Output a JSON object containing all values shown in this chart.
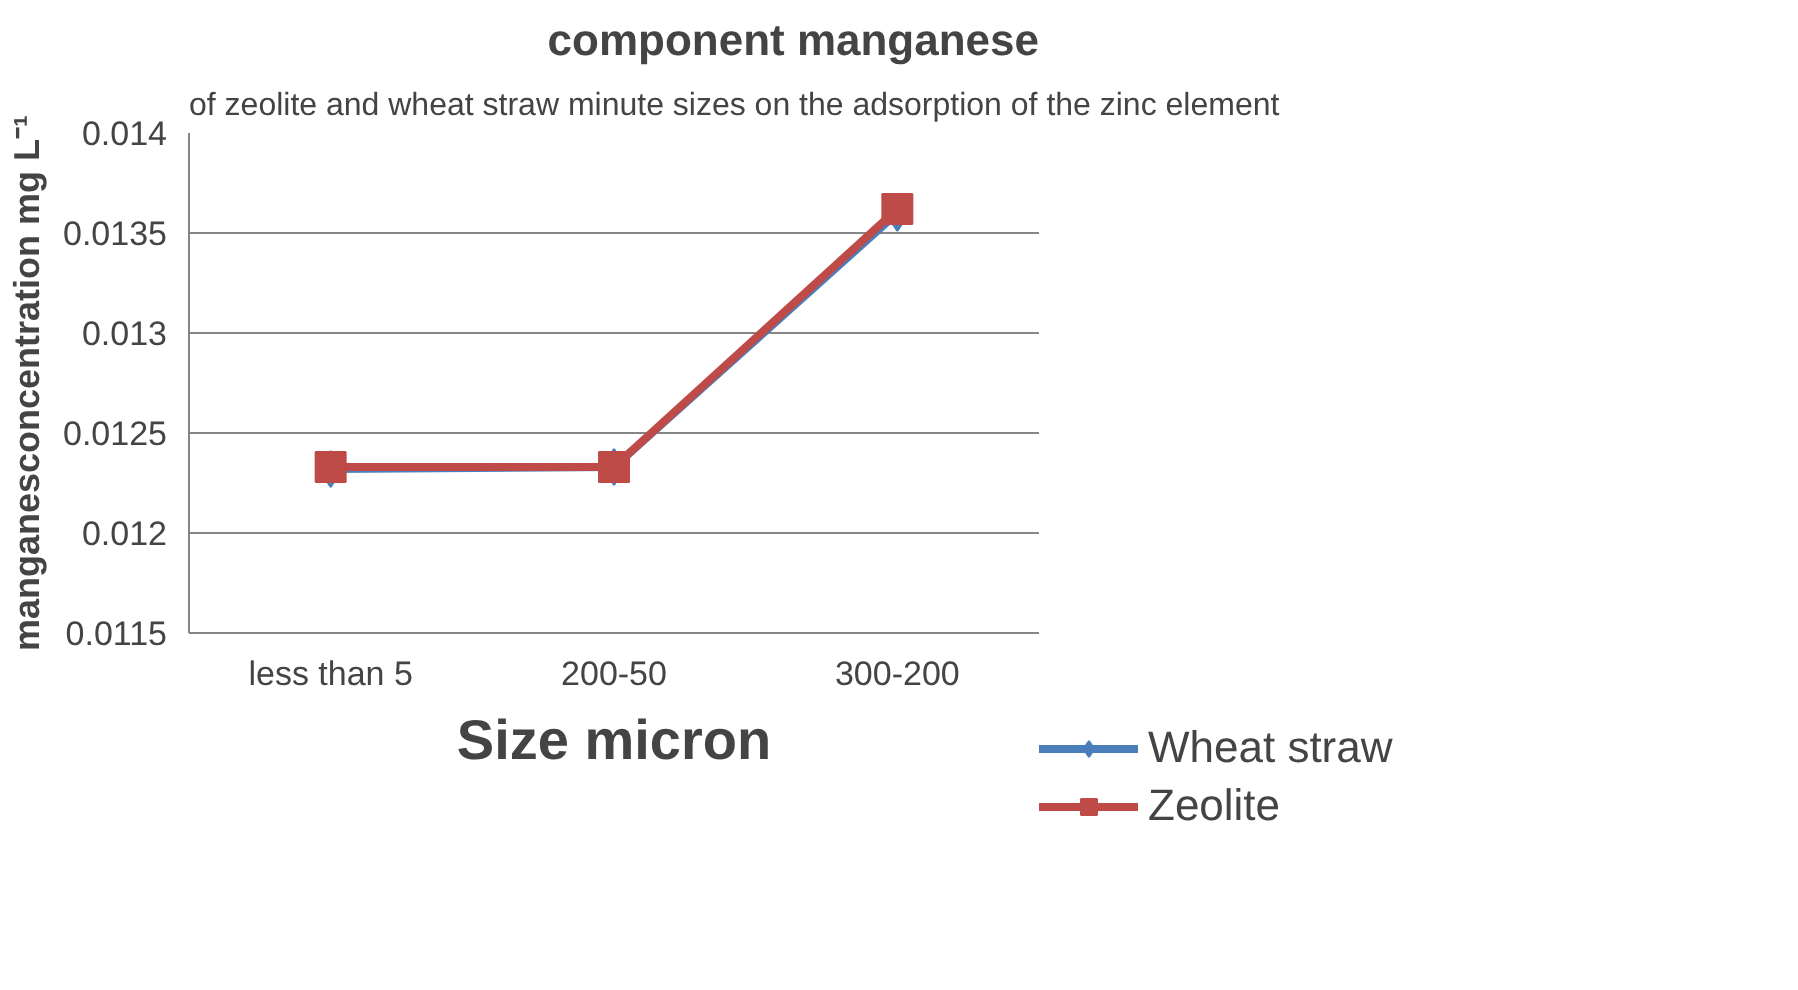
{
  "chart_data": {
    "type": "line",
    "title": "component manganese",
    "subtitle": "of zeolite and wheat straw minute sizes on the adsorption of the zinc element",
    "xlabel": "Size micron",
    "ylabel": "manganesconcentration mg L⁻¹",
    "categories": [
      "less than 5",
      "200-50",
      "300-200"
    ],
    "series": [
      {
        "name": "Wheat straw",
        "color": "#4a7ebb",
        "marker": "diamond",
        "values": [
          0.01232,
          0.01233,
          0.0136
        ]
      },
      {
        "name": "Zeolite",
        "color": "#be4b48",
        "marker": "square",
        "values": [
          0.01233,
          0.01233,
          0.01362
        ]
      }
    ],
    "ylim": [
      0.0115,
      0.014
    ],
    "yticks": [
      0.0115,
      0.012,
      0.0125,
      0.013,
      0.0135,
      0.014
    ],
    "grid": "y",
    "legend": "right",
    "line_style": "solid"
  }
}
